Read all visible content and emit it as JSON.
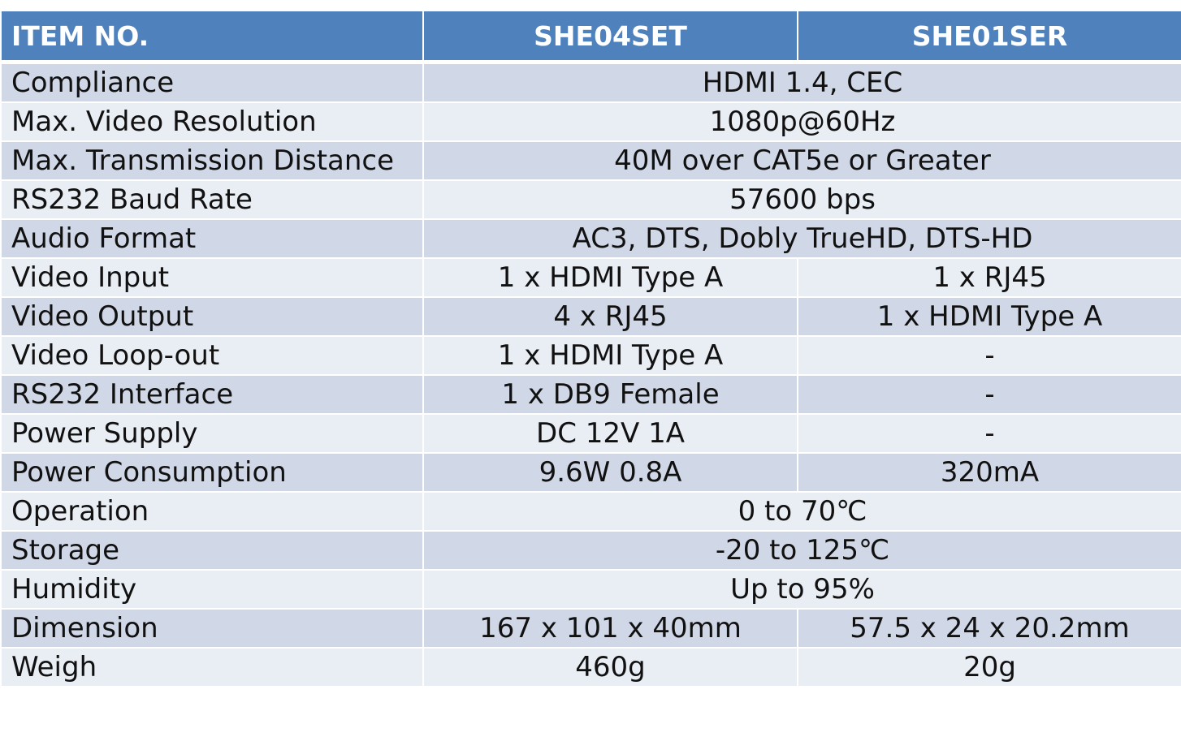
{
  "header": {
    "item": "ITEM NO.",
    "model_a": "SHE04SET",
    "model_b": "SHE01SER"
  },
  "rows": [
    {
      "label": "Compliance",
      "shared": "HDMI 1.4, CEC"
    },
    {
      "label": "Max. Video Resolution",
      "shared": "1080p@60Hz"
    },
    {
      "label": "Max. Transmission Distance",
      "shared": "40M over CAT5e or Greater"
    },
    {
      "label": "RS232 Baud Rate",
      "shared": "57600 bps"
    },
    {
      "label": "Audio Format",
      "shared": "AC3, DTS, Dobly TrueHD, DTS-HD"
    },
    {
      "label": "Video Input",
      "a": "1 x HDMI Type A",
      "b": "1 x RJ45"
    },
    {
      "label": "Video Output",
      "a": "4 x RJ45",
      "b": "1 x HDMI Type A"
    },
    {
      "label": "Video Loop-out",
      "a": "1 x HDMI Type A",
      "b": "-"
    },
    {
      "label": "RS232 Interface",
      "a": "1 x DB9 Female",
      "b": "-"
    },
    {
      "label": "Power Supply",
      "a": "DC 12V 1A",
      "b": "-"
    },
    {
      "label": "Power Consumption",
      "a": "9.6W 0.8A",
      "b": "320mA"
    },
    {
      "label": "Operation",
      "shared": "0 to 70℃"
    },
    {
      "label": "Storage",
      "shared": "-20 to 125℃"
    },
    {
      "label": "Humidity",
      "shared": "Up to 95%"
    },
    {
      "label": "Dimension",
      "a": "167 x 101 x 40mm",
      "b": "57.5 x 24 x 20.2mm"
    },
    {
      "label": "Weigh",
      "a": "460g",
      "b": "20g"
    }
  ],
  "colors": {
    "header_bg": "#4f81bd",
    "row_odd_bg": "#d0d8e8",
    "row_even_bg": "#e9edf4"
  }
}
